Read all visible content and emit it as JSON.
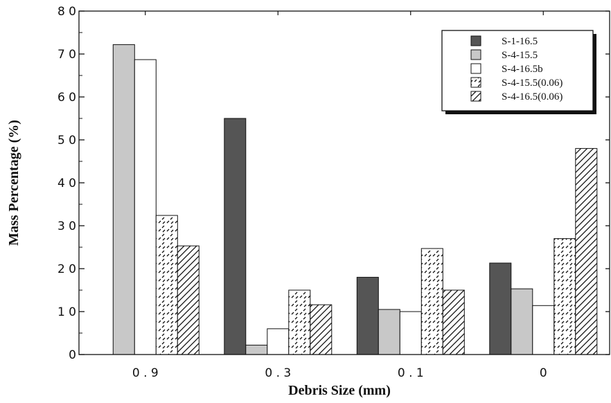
{
  "chart_data": {
    "type": "bar",
    "xlabel": "Debris Size (mm)",
    "ylabel": "Mass Percentage (%)",
    "ylim": [
      0,
      8
    ],
    "y_ticks": [
      "0",
      "1 0",
      "2 0",
      "3 0",
      "4 0",
      "5 0",
      "6 0",
      "7 0",
      "8 0"
    ],
    "categories": [
      "0.9",
      "0.3",
      "0.1",
      "0"
    ],
    "category_labels": [
      "0 . 9",
      "0 . 3",
      "0 . 1",
      "0"
    ],
    "legend_position": "top-right",
    "grid": false,
    "series": [
      {
        "name": "S-1-16.5",
        "values": [
          null,
          5.5,
          1.8,
          2.13
        ],
        "color": "#555555",
        "pattern": "solid"
      },
      {
        "name": "S-4-15.5",
        "values": [
          7.22,
          0.22,
          1.05,
          1.53
        ],
        "color": "#c8c8c8",
        "pattern": "solid"
      },
      {
        "name": "S-4-16.5b",
        "values": [
          6.87,
          0.6,
          1.0,
          1.14
        ],
        "color": "#ffffff",
        "pattern": "solid"
      },
      {
        "name": "S-4-15.5(0.06)",
        "values": [
          3.24,
          1.5,
          2.47,
          2.7
        ],
        "color": "#ffffff",
        "pattern": "dashed-hatch"
      },
      {
        "name": "S-4-16.5(0.06)",
        "values": [
          2.53,
          1.16,
          1.5,
          4.8
        ],
        "color": "#ffffff",
        "pattern": "diagonal-hatch"
      }
    ]
  }
}
